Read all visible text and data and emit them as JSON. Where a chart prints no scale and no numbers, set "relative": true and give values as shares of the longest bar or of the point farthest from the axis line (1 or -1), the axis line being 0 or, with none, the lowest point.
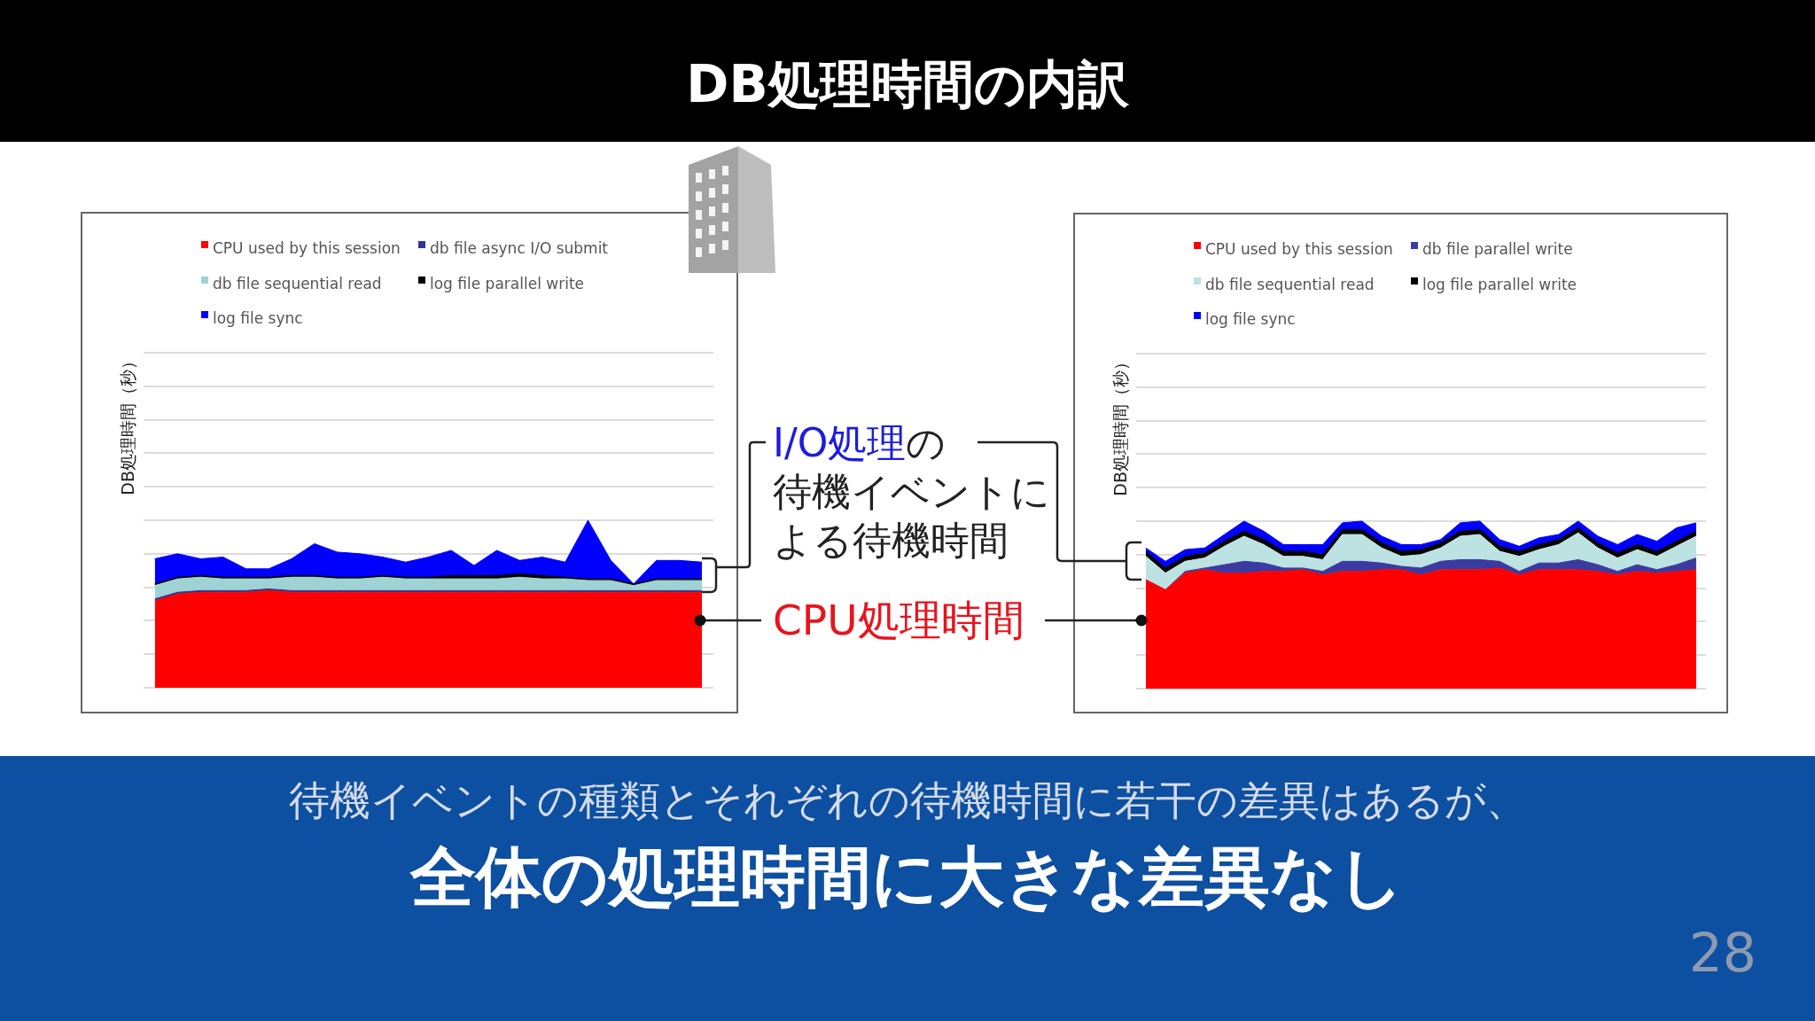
{
  "chart_data": [
    {
      "type": "area",
      "title": "DB処理時間の内訳",
      "ylabel": "DB処理時間（秒）",
      "stacked": true,
      "relative": true,
      "grid": "y",
      "legend": "top",
      "tick_labels": false,
      "categories": [
        null,
        null,
        null,
        null,
        null,
        null,
        null,
        null,
        null,
        null,
        null,
        null,
        null,
        null,
        null,
        null,
        null,
        null,
        null,
        null,
        null,
        null,
        null,
        null,
        null
      ],
      "series": [
        {
          "name": "CPU used by this session",
          "color": "#ff0000",
          "values": [
            0.52,
            0.56,
            0.57,
            0.57,
            0.57,
            0.58,
            0.57,
            0.57,
            0.57,
            0.57,
            0.57,
            0.57,
            0.57,
            0.57,
            0.57,
            0.57,
            0.57,
            0.57,
            0.57,
            0.57,
            0.57,
            0.57,
            0.57,
            0.57,
            0.57
          ]
        },
        {
          "name": "db file async I/O submit",
          "color": "#333399",
          "values": [
            0.01,
            0.01,
            0.01,
            0.01,
            0.01,
            0.01,
            0.01,
            0.01,
            0.01,
            0.01,
            0.01,
            0.01,
            0.01,
            0.01,
            0.01,
            0.01,
            0.01,
            0.01,
            0.01,
            0.01,
            0.01,
            0.01,
            0.01,
            0.01,
            0.01
          ]
        },
        {
          "name": "db file sequential read",
          "color": "#9fd3d3",
          "values": [
            0.08,
            0.08,
            0.08,
            0.07,
            0.07,
            0.06,
            0.08,
            0.08,
            0.07,
            0.07,
            0.08,
            0.07,
            0.07,
            0.07,
            0.07,
            0.07,
            0.08,
            0.07,
            0.07,
            0.06,
            0.06,
            0.03,
            0.06,
            0.06,
            0.06
          ]
        },
        {
          "name": "log file parallel write",
          "color": "#000000",
          "values": [
            0.01,
            0.01,
            0.01,
            0.01,
            0.01,
            0.01,
            0.01,
            0.01,
            0.01,
            0.01,
            0.01,
            0.01,
            0.01,
            0.02,
            0.02,
            0.02,
            0.02,
            0.02,
            0.01,
            0.01,
            0.01,
            0.01,
            0.01,
            0.01,
            0.01
          ]
        },
        {
          "name": "log file sync",
          "color": "#0000ff",
          "values": [
            0.15,
            0.14,
            0.1,
            0.12,
            0.05,
            0.05,
            0.1,
            0.19,
            0.15,
            0.14,
            0.11,
            0.09,
            0.12,
            0.15,
            0.06,
            0.15,
            0.08,
            0.11,
            0.09,
            0.35,
            0.11,
            0,
            0.11,
            0.11,
            0.1
          ]
        }
      ],
      "annotations": [
        "I/O処理",
        "の",
        "待機イベントに",
        "よる待機時間",
        "CPU処理時間",
        "待機イベントの種類とそれぞれの待機時間に若干の差異はあるが、",
        "全体の処理時間に大きな差異なし",
        "28"
      ]
    },
    {
      "type": "area",
      "ylabel": "DB処理時間（秒）",
      "stacked": true,
      "relative": true,
      "grid": "y",
      "legend": "top",
      "tick_labels": false,
      "categories": [
        null,
        null,
        null,
        null,
        null,
        null,
        null,
        null,
        null,
        null,
        null,
        null,
        null,
        null,
        null,
        null,
        null,
        null,
        null,
        null,
        null,
        null,
        null,
        null,
        null,
        null,
        null,
        null,
        null
      ],
      "series": [
        {
          "name": "CPU used by this session",
          "color": "#ff0000",
          "values": [
            0.65,
            0.59,
            0.69,
            0.71,
            0.69,
            0.69,
            0.7,
            0.7,
            0.71,
            0.68,
            0.7,
            0.7,
            0.71,
            0.71,
            0.68,
            0.71,
            0.71,
            0.71,
            0.72,
            0.68,
            0.71,
            0.71,
            0.71,
            0.7,
            0.68,
            0.7,
            0.69,
            0.7,
            0.71
          ]
        },
        {
          "name": "db file parallel write",
          "color": "#3a3aa0",
          "values": [
            0,
            0,
            0.01,
            0.01,
            0.05,
            0.07,
            0.05,
            0.02,
            0.01,
            0.02,
            0.06,
            0.06,
            0.04,
            0.02,
            0.04,
            0.05,
            0.06,
            0.06,
            0.04,
            0.02,
            0.04,
            0.04,
            0.06,
            0.04,
            0.02,
            0.04,
            0.02,
            0.04,
            0.07
          ]
        },
        {
          "name": "db file sequential read",
          "color": "#bde2e2",
          "values": [
            0.14,
            0.1,
            0.06,
            0.06,
            0.11,
            0.15,
            0.11,
            0.07,
            0.07,
            0.07,
            0.16,
            0.16,
            0.09,
            0.06,
            0.08,
            0.08,
            0.14,
            0.15,
            0.06,
            0.09,
            0.08,
            0.11,
            0.16,
            0.1,
            0.08,
            0.09,
            0.08,
            0.11,
            0.13
          ]
        },
        {
          "name": "log file parallel write",
          "color": "#000000",
          "values": [
            0.03,
            0.03,
            0.03,
            0.03,
            0.03,
            0.03,
            0.03,
            0.03,
            0.03,
            0.03,
            0.03,
            0.03,
            0.03,
            0.03,
            0.03,
            0.03,
            0.03,
            0.03,
            0.03,
            0.03,
            0.03,
            0.03,
            0.03,
            0.03,
            0.03,
            0.03,
            0.03,
            0.03,
            0.03
          ]
        },
        {
          "name": "log file sync",
          "color": "#0000ff",
          "values": [
            0.02,
            0.04,
            0.04,
            0.03,
            0.04,
            0.06,
            0.05,
            0.04,
            0.04,
            0.06,
            0.04,
            0.05,
            0.04,
            0.04,
            0.03,
            0.02,
            0.05,
            0.05,
            0.04,
            0.03,
            0.04,
            0.03,
            0.04,
            0.04,
            0.05,
            0.06,
            0.06,
            0.08,
            0.05
          ]
        }
      ]
    }
  ]
}
